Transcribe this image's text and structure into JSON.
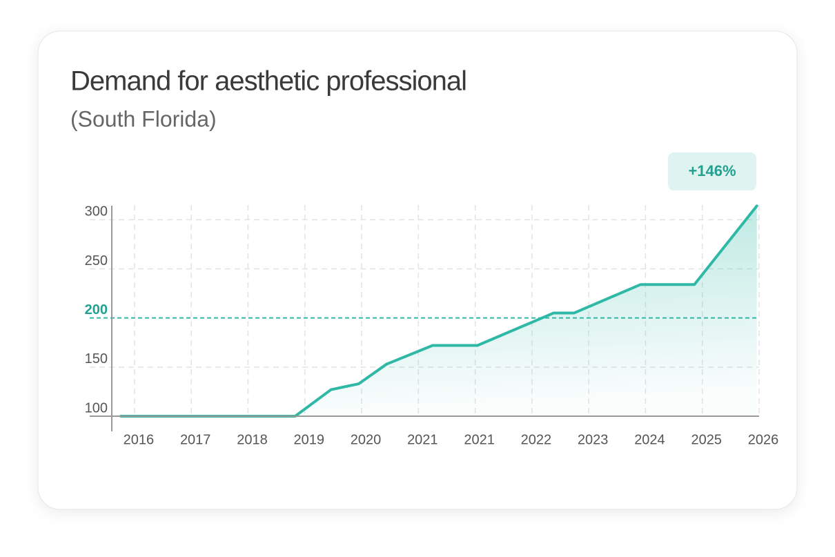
{
  "chart_data": {
    "type": "line",
    "title": "Demand for aesthetic professional",
    "subtitle": "(South Florida)",
    "annotation": "+146%",
    "x": [
      -0.24,
      2.83,
      3.46,
      3.95,
      4.44,
      5.25,
      6.04,
      7.38,
      7.74,
      8.91,
      9.86,
      10.96
    ],
    "values": [
      100,
      100,
      127,
      133,
      153,
      172,
      172,
      205,
      205,
      234,
      234,
      314
    ],
    "color": "#2fb8a6",
    "xlim": [
      -0.4,
      11
    ],
    "xticks": [
      {
        "value": 0,
        "label": "2016"
      },
      {
        "value": 1,
        "label": "2017"
      },
      {
        "value": 2,
        "label": "2018"
      },
      {
        "value": 3,
        "label": "2019"
      },
      {
        "value": 4,
        "label": "2020"
      },
      {
        "value": 5,
        "label": "2021"
      },
      {
        "value": 6,
        "label": "2021"
      },
      {
        "value": 7,
        "label": "2022"
      },
      {
        "value": 8,
        "label": "2023"
      },
      {
        "value": 9,
        "label": "2024"
      },
      {
        "value": 10,
        "label": "2025"
      },
      {
        "value": 11,
        "label": "2026"
      }
    ],
    "ylim": [
      100,
      315
    ],
    "yticks": [
      100,
      150,
      200,
      250,
      300
    ],
    "reference_line": 200,
    "grid": true
  }
}
